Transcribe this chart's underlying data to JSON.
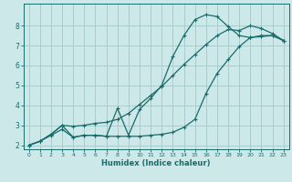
{
  "xlabel": "Humidex (Indice chaleur)",
  "bg_color": "#cce8e8",
  "grid_color": "#aacccc",
  "line_color": "#1a6b6b",
  "xlim": [
    -0.5,
    23.5
  ],
  "ylim": [
    1.8,
    9.1
  ],
  "xticks": [
    0,
    1,
    2,
    3,
    4,
    5,
    6,
    7,
    8,
    9,
    10,
    11,
    12,
    13,
    14,
    15,
    16,
    17,
    18,
    19,
    20,
    21,
    22,
    23
  ],
  "yticks": [
    2,
    3,
    4,
    5,
    6,
    7,
    8
  ],
  "curve1_x": [
    0,
    1,
    2,
    3,
    4,
    5,
    6,
    7,
    8,
    9,
    10,
    11,
    12,
    13,
    14,
    15,
    16,
    17,
    18,
    19,
    20,
    21,
    22,
    23
  ],
  "curve1_y": [
    2.0,
    2.2,
    2.5,
    2.8,
    2.4,
    2.5,
    2.5,
    2.45,
    2.45,
    2.45,
    2.45,
    2.5,
    2.55,
    2.65,
    2.9,
    3.3,
    4.6,
    5.6,
    6.3,
    6.95,
    7.4,
    7.45,
    7.5,
    7.25
  ],
  "curve2_x": [
    0,
    1,
    2,
    3,
    4,
    5,
    6,
    7,
    8,
    9,
    10,
    11,
    12,
    13,
    14,
    15,
    16,
    17,
    18,
    19,
    20,
    21,
    22,
    23
  ],
  "curve2_y": [
    2.0,
    2.2,
    2.55,
    3.0,
    2.95,
    3.0,
    3.1,
    3.15,
    3.3,
    3.6,
    4.05,
    4.5,
    4.95,
    5.5,
    6.05,
    6.55,
    7.05,
    7.5,
    7.8,
    7.75,
    8.0,
    7.85,
    7.6,
    7.25
  ],
  "curve3_x": [
    0,
    1,
    2,
    3,
    4,
    5,
    6,
    7,
    8,
    9,
    10,
    11,
    12,
    13,
    14,
    15,
    16,
    17,
    18,
    19,
    20,
    21,
    22,
    23
  ],
  "curve3_y": [
    2.0,
    2.2,
    2.55,
    3.0,
    2.4,
    2.5,
    2.5,
    2.45,
    3.85,
    2.5,
    3.8,
    4.35,
    5.0,
    6.45,
    7.5,
    8.3,
    8.55,
    8.45,
    7.95,
    7.5,
    7.4,
    7.5,
    7.5,
    7.25
  ]
}
